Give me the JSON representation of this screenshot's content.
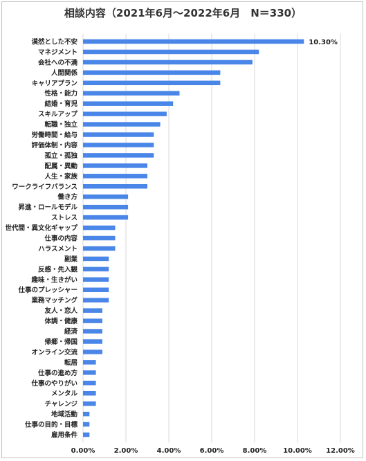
{
  "chart_data": {
    "type": "bar",
    "orientation": "horizontal",
    "title": "相談内容（2021年6月～2022年6月　N＝330）",
    "xlim": [
      0,
      12
    ],
    "x_ticks": [
      "0.00%",
      "2.00%",
      "4.00%",
      "6.00%",
      "8.00%",
      "10.00%",
      "12.00%"
    ],
    "x_tick_values": [
      0,
      2,
      4,
      6,
      8,
      10,
      12
    ],
    "bar_color": "#4a86e8",
    "grid": "vertical-major",
    "data_labels": [
      {
        "category": "漠然とした不安",
        "text": "10.30%"
      }
    ],
    "categories": [
      "漠然とした不安",
      "マネジメント",
      "会社への不満",
      "人間関係",
      "キャリアプラン",
      "性格・能力",
      "結婚・育児",
      "スキルアップ",
      "転職・独立",
      "労働時間・給与",
      "評価体制・内容",
      "孤立・孤独",
      "配属・異動",
      "人生・家族",
      "ワークライフバランス",
      "働き方",
      "昇進・ロールモデル",
      "ストレス",
      "世代間・異文化ギャップ",
      "仕事の内容",
      "ハラスメント",
      "副業",
      "反感・先入観",
      "趣味・生きがい",
      "仕事のプレッシャー",
      "業務マッチング",
      "友人・恋人",
      "体調・健康",
      "経済",
      "帰郷・帰国",
      "オンライン交流",
      "転居",
      "仕事の進め方",
      "仕事のやりがい",
      "メンタル",
      "チャレンジ",
      "地域活動",
      "仕事の目的・目標",
      "雇用条件"
    ],
    "values": [
      10.3,
      8.2,
      7.9,
      6.4,
      6.4,
      4.5,
      4.2,
      3.9,
      3.6,
      3.3,
      3.3,
      3.3,
      3.0,
      3.0,
      3.0,
      2.1,
      2.1,
      2.1,
      1.5,
      1.5,
      1.5,
      1.2,
      1.2,
      1.2,
      1.2,
      1.2,
      0.9,
      0.9,
      0.9,
      0.9,
      0.9,
      0.6,
      0.6,
      0.6,
      0.6,
      0.6,
      0.3,
      0.3,
      0.3
    ]
  }
}
